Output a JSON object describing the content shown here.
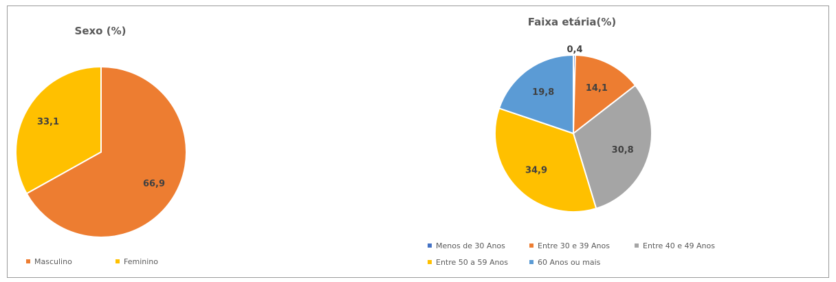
{
  "chart_data": [
    {
      "type": "pie",
      "title": "Sexo (%)",
      "categories": [
        "Masculino",
        "Feminino"
      ],
      "values": [
        66.9,
        33.1
      ],
      "value_labels": [
        "66,9",
        "33,1"
      ],
      "colors": [
        "#ED7D31",
        "#FFC000"
      ],
      "start": "12 o'clock, clockwise",
      "legend": "bottom"
    },
    {
      "type": "pie",
      "title": "Faixa etária(%)",
      "categories": [
        "Menos de 30 Anos",
        "Entre 30 e 39 Anos",
        "Entre 40 e 49 Anos",
        "Entre 50 a 59 Anos",
        "60 Anos ou mais"
      ],
      "values": [
        0.4,
        14.1,
        30.8,
        34.9,
        19.8
      ],
      "value_labels": [
        "0,4",
        "14,1",
        "30,8",
        "34,9",
        "19,8"
      ],
      "colors": [
        "#4472C4",
        "#ED7D31",
        "#A5A5A5",
        "#FFC000",
        "#5B9BD5"
      ],
      "start": "12 o'clock, clockwise",
      "legend": "bottom"
    }
  ]
}
